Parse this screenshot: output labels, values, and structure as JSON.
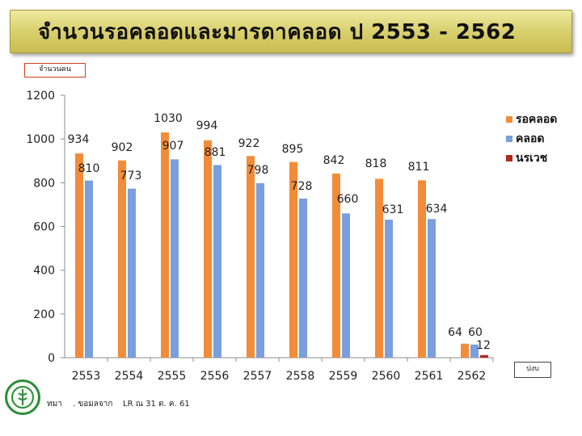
{
  "header": {
    "title": "จำนวนรอคลอดและมารดาคลอด ป 2553 - 2562"
  },
  "y_unit_label": "จำนวนคน",
  "x_unit_label": "ปงบ",
  "footer": {
    "source_prefix": "ทมา",
    "source_text": ". ขอมลจาก",
    "source_date": "LR ณ 31 ต. ค. 61"
  },
  "colors": {
    "series_1": "#f28c38",
    "series_2": "#7a9fdc",
    "series_3": "#b02a1e",
    "title_bg": "#d9d06e",
    "logo": "#2e8b3a"
  },
  "chart_data": {
    "type": "bar",
    "categories": [
      "2553",
      "2554",
      "2555",
      "2556",
      "2557",
      "2558",
      "2559",
      "2560",
      "2561",
      "2562"
    ],
    "series": [
      {
        "name": "รอคลอด",
        "values": [
          934,
          902,
          1030,
          994,
          922,
          895,
          842,
          818,
          811,
          64
        ]
      },
      {
        "name": "คลอด",
        "values": [
          810,
          773,
          907,
          881,
          798,
          728,
          660,
          631,
          634,
          60
        ]
      },
      {
        "name": "นรเวช",
        "values": [
          null,
          null,
          null,
          null,
          null,
          null,
          null,
          null,
          null,
          12
        ]
      }
    ],
    "ylim": [
      0,
      1200
    ],
    "yticks": [
      0,
      200,
      400,
      600,
      800,
      1000,
      1200
    ],
    "grid": false,
    "legend": "right"
  }
}
